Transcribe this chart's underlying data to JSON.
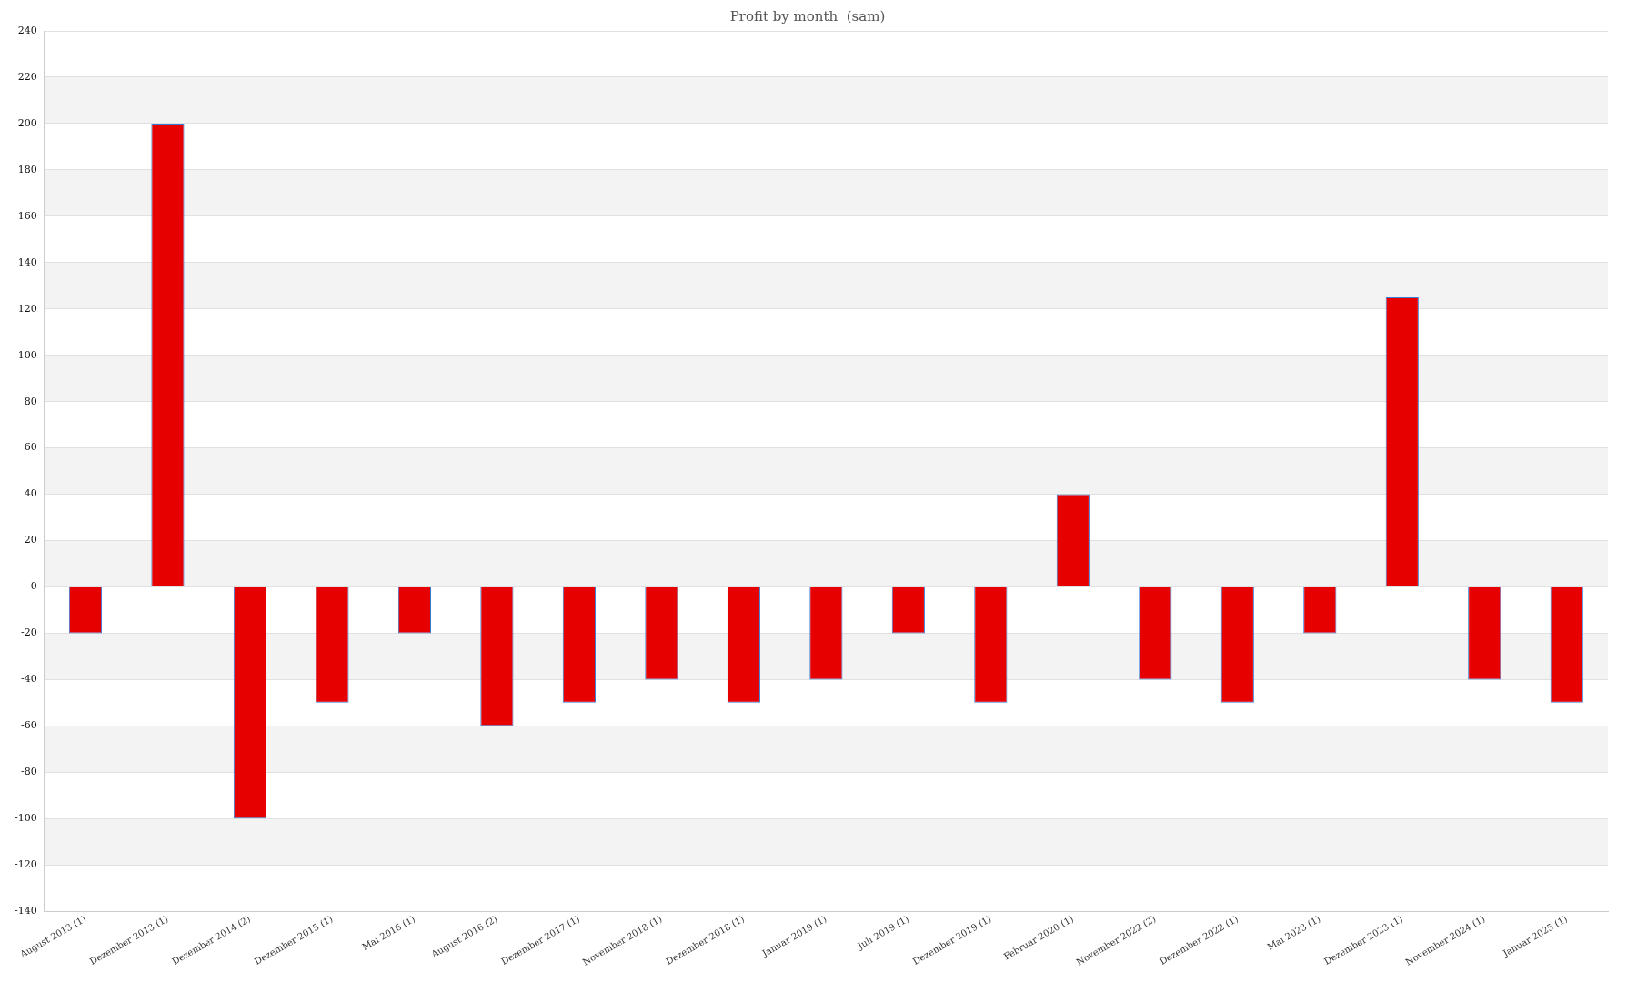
{
  "chart_data": {
    "type": "bar",
    "title": "Profit by month  (sam)",
    "categories": [
      "August 2013 (1)",
      "Dezember 2013 (1)",
      "Dezember 2014 (2)",
      "Dezember 2015 (1)",
      "Mai 2016 (1)",
      "August 2016 (2)",
      "Dezember 2017 (1)",
      "November 2018 (1)",
      "Dezember 2018 (1)",
      "Januar 2019 (1)",
      "Juli 2019 (1)",
      "Dezember 2019 (1)",
      "Februar 2020 (1)",
      "November 2022 (2)",
      "Dezember 2022 (1)",
      "Mai 2023 (1)",
      "Dezember 2023 (1)",
      "November 2024 (1)",
      "Januar 2025 (1)"
    ],
    "values": [
      -20,
      200,
      -100,
      -50,
      -20,
      -60,
      -50,
      -40,
      -50,
      -40,
      -20,
      -50,
      40,
      -40,
      -50,
      -20,
      125,
      -40,
      -50
    ],
    "color": "#e60000",
    "ylim": [
      -140,
      240
    ],
    "yticks": [
      -140,
      -120,
      -100,
      -80,
      -60,
      -40,
      -20,
      0,
      20,
      40,
      60,
      80,
      100,
      120,
      140,
      160,
      180,
      200,
      220,
      240
    ],
    "grid": "y"
  }
}
